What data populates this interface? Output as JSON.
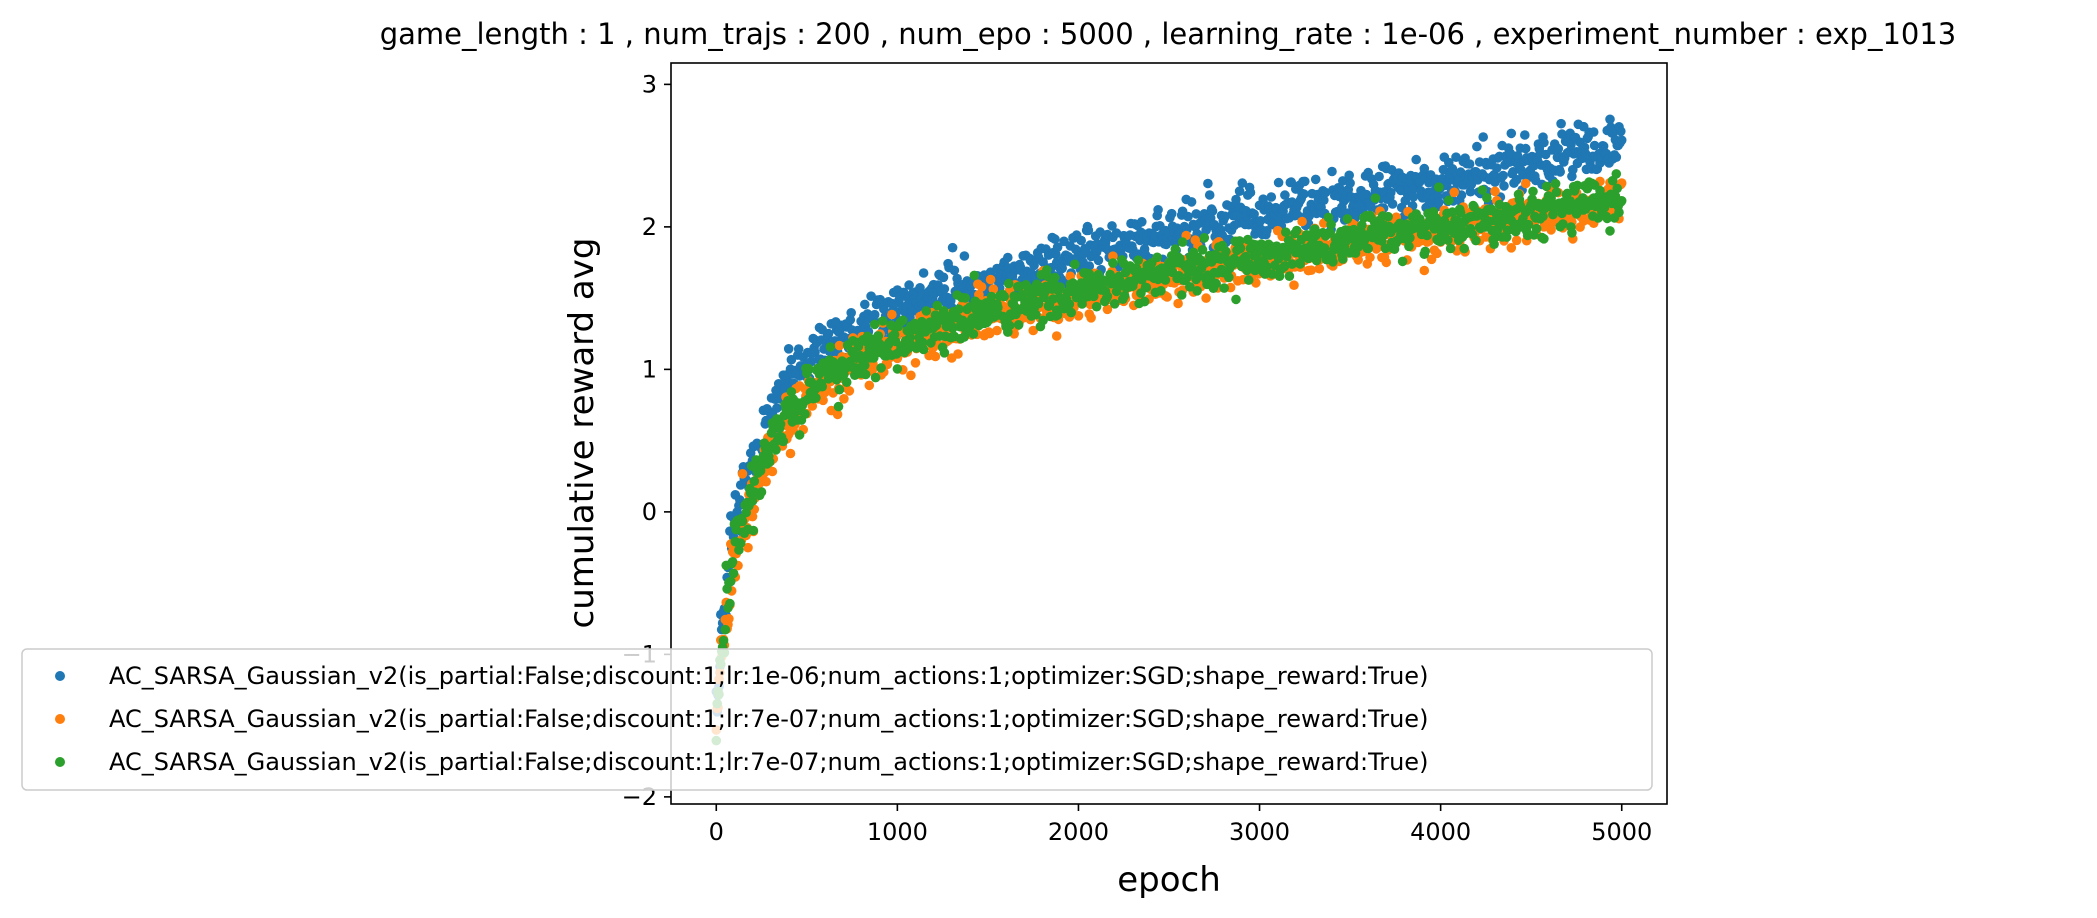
{
  "chart_data": {
    "type": "scatter",
    "title": "game_length : 1 , num_trajs : 200 , num_epo : 5000 , learning_rate : 1e-06 , experiment_number : exp_1013",
    "xlabel": "epoch",
    "ylabel": "cumulative reward avg",
    "xlim": [
      -250,
      5250
    ],
    "ylim": [
      -2.05,
      3.15
    ],
    "xticks": [
      0,
      1000,
      2000,
      3000,
      4000,
      5000
    ],
    "xtick_labels": [
      "0",
      "1000",
      "2000",
      "3000",
      "4000",
      "5000"
    ],
    "yticks": [
      -2,
      -1,
      0,
      1,
      2,
      3
    ],
    "ytick_labels": [
      "−2",
      "−1",
      "0",
      "1",
      "2",
      "3"
    ],
    "grid": false,
    "legend_position": "lower-left",
    "series": [
      {
        "name": "AC_SARSA_Gaussian_v2(is_partial:False;discount:1;lr:1e-06;num_actions:1;optimizer:SGD;shape_reward:True)",
        "color": "#1f77b4",
        "x": [
          0,
          25,
          50,
          75,
          100,
          150,
          200,
          250,
          300,
          350,
          400,
          500,
          600,
          700,
          800,
          1000,
          1200,
          1500,
          1800,
          2000,
          2300,
          2600,
          3000,
          3300,
          3600,
          4000,
          4300,
          4600,
          5000
        ],
        "y": [
          -1.4,
          -0.95,
          -0.6,
          -0.3,
          -0.1,
          0.15,
          0.35,
          0.55,
          0.7,
          0.82,
          0.92,
          1.05,
          1.15,
          1.23,
          1.3,
          1.42,
          1.52,
          1.62,
          1.72,
          1.8,
          1.88,
          1.97,
          2.07,
          2.15,
          2.23,
          2.32,
          2.4,
          2.48,
          2.58
        ],
        "spread": 0.2
      },
      {
        "name": "AC_SARSA_Gaussian_v2(is_partial:False;discount:1;lr:7e-07;num_actions:1;optimizer:SGD;shape_reward:True)",
        "color": "#ff7f0e",
        "x": [
          0,
          25,
          50,
          75,
          100,
          150,
          200,
          250,
          300,
          350,
          400,
          500,
          600,
          700,
          800,
          1000,
          1200,
          1500,
          1800,
          2000,
          2300,
          2600,
          3000,
          3300,
          3600,
          4000,
          4300,
          4600,
          5000
        ],
        "y": [
          -1.5,
          -1.1,
          -0.8,
          -0.55,
          -0.35,
          -0.1,
          0.1,
          0.28,
          0.42,
          0.54,
          0.64,
          0.78,
          0.9,
          0.98,
          1.05,
          1.17,
          1.27,
          1.38,
          1.47,
          1.53,
          1.6,
          1.68,
          1.77,
          1.84,
          1.9,
          1.98,
          2.04,
          2.1,
          2.17
        ],
        "spread": 0.2
      },
      {
        "name": "AC_SARSA_Gaussian_v2(is_partial:False;discount:1;lr:7e-07;num_actions:1;optimizer:SGD;shape_reward:True)",
        "color": "#2ca02c",
        "x": [
          0,
          25,
          50,
          75,
          100,
          150,
          200,
          250,
          300,
          350,
          400,
          500,
          600,
          700,
          800,
          1000,
          1200,
          1500,
          1800,
          2000,
          2300,
          2600,
          3000,
          3300,
          3600,
          4000,
          4300,
          4600,
          5000
        ],
        "y": [
          -1.45,
          -1.05,
          -0.75,
          -0.5,
          -0.3,
          -0.05,
          0.15,
          0.32,
          0.46,
          0.58,
          0.68,
          0.82,
          0.94,
          1.02,
          1.09,
          1.2,
          1.3,
          1.4,
          1.49,
          1.55,
          1.62,
          1.7,
          1.79,
          1.86,
          1.93,
          2.01,
          2.07,
          2.13,
          2.2
        ],
        "spread": 0.18
      }
    ]
  }
}
